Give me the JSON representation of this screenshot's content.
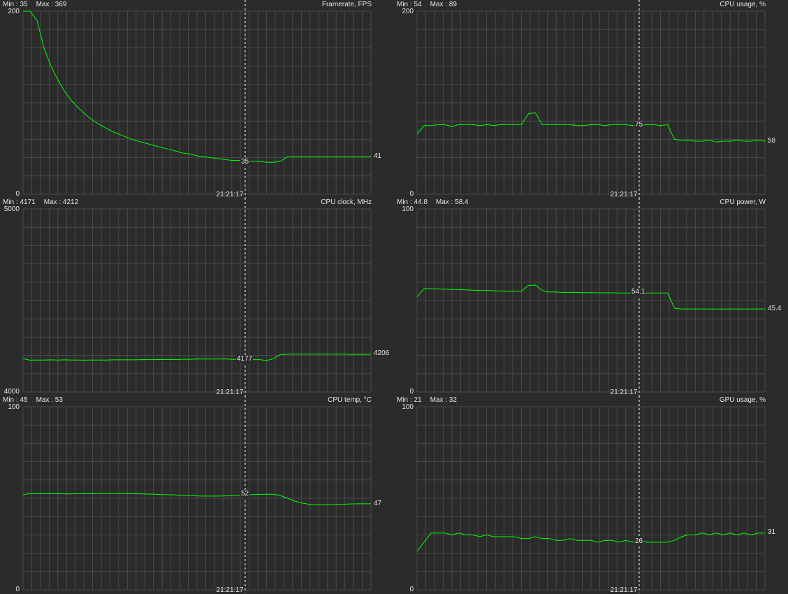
{
  "colors": {
    "background": "#2b2b2b",
    "grid": "#4a4a4a",
    "line": "#00ff00",
    "text": "#e6e6e6",
    "cursor": "#ffffff"
  },
  "cursor_time": "21:21:17",
  "panels": [
    {
      "title": "Framerate, FPS",
      "min_label": "Min : 35",
      "max_label": "Max : 369",
      "y_max_label": "200",
      "y_min_label": "0",
      "y_range": [
        0,
        200
      ],
      "cursor_value": "35",
      "last_value": "41",
      "time_label": "21:21:17"
    },
    {
      "title": "CPU usage, %",
      "min_label": "Min : 54",
      "max_label": "Max : 89",
      "y_max_label": "200",
      "y_min_label": "0",
      "y_range": [
        0,
        200
      ],
      "cursor_value": "75",
      "last_value": "58",
      "time_label": "21:21:17"
    },
    {
      "title": "CPU clock, MHz",
      "min_label": "Min : 4171",
      "max_label": "Max : 4212",
      "y_max_label": "5000",
      "y_min_label": "4000",
      "y_range": [
        4000,
        5000
      ],
      "cursor_value": "4177",
      "last_value": "4206",
      "time_label": "21:21:17"
    },
    {
      "title": "CPU power, W",
      "min_label": "Min : 44.8",
      "max_label": "Max : 58.4",
      "y_max_label": "100",
      "y_min_label": "0",
      "y_range": [
        0,
        100
      ],
      "cursor_value": "54.1",
      "last_value": "45.4",
      "time_label": "21:21:17"
    },
    {
      "title": "CPU temp, °C",
      "min_label": "Min : 45",
      "max_label": "Max : 53",
      "y_max_label": "100",
      "y_min_label": "0",
      "y_range": [
        0,
        100
      ],
      "cursor_value": "52",
      "last_value": "47",
      "time_label": "21:21:17"
    },
    {
      "title": "GPU usage, %",
      "min_label": "Min : 21",
      "max_label": "Max : 32",
      "y_max_label": "100",
      "y_min_label": "0",
      "y_range": [
        0,
        100
      ],
      "cursor_value": "26",
      "last_value": "31",
      "time_label": "21:21:17"
    }
  ],
  "chart_data": [
    {
      "type": "line",
      "title": "Framerate, FPS",
      "ylim": [
        0,
        200
      ],
      "grid": true,
      "series": [
        {
          "values": [
            200,
            200,
            190,
            160,
            140,
            125,
            112,
            102,
            94,
            87,
            81,
            76,
            72,
            68,
            65,
            62,
            59,
            57,
            55,
            53,
            51,
            49,
            47,
            45,
            44,
            42,
            41,
            40,
            39,
            38,
            37,
            37,
            36,
            36,
            36,
            35,
            35,
            36,
            41,
            41,
            41,
            41,
            41,
            41,
            41,
            41,
            41,
            41,
            41,
            41,
            41
          ]
        }
      ]
    },
    {
      "type": "line",
      "title": "CPU usage, %",
      "ylim": [
        0,
        200
      ],
      "grid": true,
      "series": [
        {
          "values": [
            66,
            75,
            75,
            76,
            76,
            74,
            76,
            76,
            76,
            75,
            76,
            75,
            76,
            76,
            76,
            76,
            88,
            89,
            76,
            76,
            76,
            76,
            76,
            75,
            75,
            76,
            76,
            75,
            76,
            76,
            76,
            75,
            75,
            76,
            76,
            75,
            76,
            60,
            59,
            59,
            58,
            58,
            59,
            57,
            58,
            58,
            59,
            58,
            58,
            59,
            58
          ]
        }
      ]
    },
    {
      "type": "line",
      "title": "CPU clock, MHz",
      "ylim": [
        4000,
        5000
      ],
      "grid": true,
      "series": [
        {
          "values": [
            4182,
            4174,
            4175,
            4175,
            4176,
            4175,
            4176,
            4175,
            4175,
            4174,
            4175,
            4175,
            4175,
            4176,
            4176,
            4176,
            4176,
            4177,
            4177,
            4177,
            4178,
            4178,
            4178,
            4179,
            4179,
            4180,
            4180,
            4180,
            4180,
            4181,
            4179,
            4178,
            4177,
            4177,
            4177,
            4172,
            4182,
            4205,
            4206,
            4207,
            4207,
            4207,
            4207,
            4207,
            4207,
            4207,
            4207,
            4206,
            4206,
            4206,
            4206
          ]
        }
      ]
    },
    {
      "type": "line",
      "title": "CPU power, W",
      "ylim": [
        0,
        100
      ],
      "grid": true,
      "series": [
        {
          "values": [
            52,
            56.5,
            56.5,
            56.3,
            56.2,
            56,
            56,
            55.8,
            55.6,
            55.5,
            55.5,
            55.3,
            55.2,
            55,
            55,
            55.1,
            58.2,
            58.4,
            55.5,
            54.6,
            54.6,
            54.4,
            54.5,
            54.4,
            54.3,
            54.3,
            54.2,
            54.2,
            54.2,
            54.1,
            54.1,
            54.1,
            54.1,
            54.1,
            54.1,
            54.1,
            54.1,
            45.8,
            45.4,
            45.4,
            45.4,
            45.4,
            45.3,
            45.3,
            45.3,
            45.4,
            45.4,
            45.3,
            45.4,
            45.4,
            45.4
          ]
        }
      ]
    },
    {
      "type": "line",
      "title": "CPU temp, °C",
      "ylim": [
        0,
        100
      ],
      "grid": true,
      "series": [
        {
          "values": [
            52,
            52.5,
            52.5,
            52.5,
            52.5,
            52.5,
            52.4,
            52.4,
            52.5,
            52.5,
            52.5,
            52.6,
            52.6,
            52.6,
            52.6,
            52.5,
            52.5,
            52.4,
            52.3,
            52.2,
            52,
            51.9,
            51.8,
            51.6,
            51.5,
            51.3,
            51.2,
            51.2,
            51.2,
            51.3,
            51.4,
            51.6,
            51.8,
            52,
            52.1,
            52.2,
            52.2,
            51.5,
            50,
            48.5,
            47.5,
            46.8,
            46.5,
            46.5,
            46.5,
            46.6,
            46.7,
            46.9,
            47,
            47,
            47
          ]
        }
      ]
    },
    {
      "type": "line",
      "title": "GPU usage, %",
      "ylim": [
        0,
        100
      ],
      "grid": true,
      "series": [
        {
          "values": [
            21,
            26,
            31,
            31,
            31,
            30,
            31,
            30,
            30,
            29,
            30,
            29,
            29,
            29,
            29,
            28,
            28,
            29,
            28,
            28,
            27,
            27,
            28,
            27,
            27,
            27,
            26,
            27,
            27,
            26,
            27,
            26,
            27,
            26,
            26,
            26,
            26,
            27,
            29,
            30,
            30,
            31,
            30,
            31,
            30,
            31,
            30,
            31,
            30,
            31,
            31
          ]
        }
      ]
    }
  ]
}
